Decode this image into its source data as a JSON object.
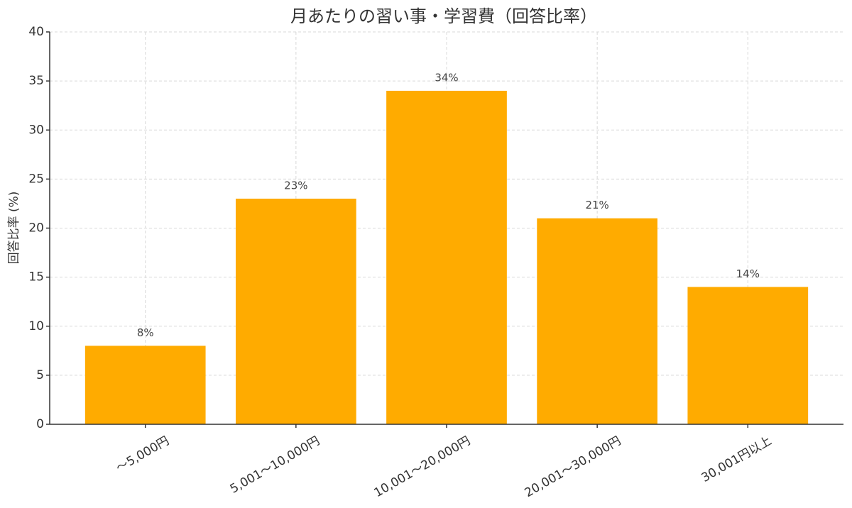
{
  "chart_data": {
    "type": "bar",
    "title": "月あたりの習い事・学習費（回答比率）",
    "y_label": "回答比率 (%)",
    "categories": [
      "〜5,000円",
      "5,001〜10,000円",
      "10,001〜20,000円",
      "20,001〜30,000円",
      "30,001円以上"
    ],
    "values": [
      8,
      23,
      34,
      21,
      14
    ],
    "value_labels": [
      "8%",
      "23%",
      "34%",
      "21%",
      "14%"
    ],
    "color": "#ffab00",
    "ylim": [
      0,
      40
    ],
    "yticks": [
      0,
      5,
      10,
      15,
      20,
      25,
      30,
      35,
      40
    ],
    "grid": true
  }
}
